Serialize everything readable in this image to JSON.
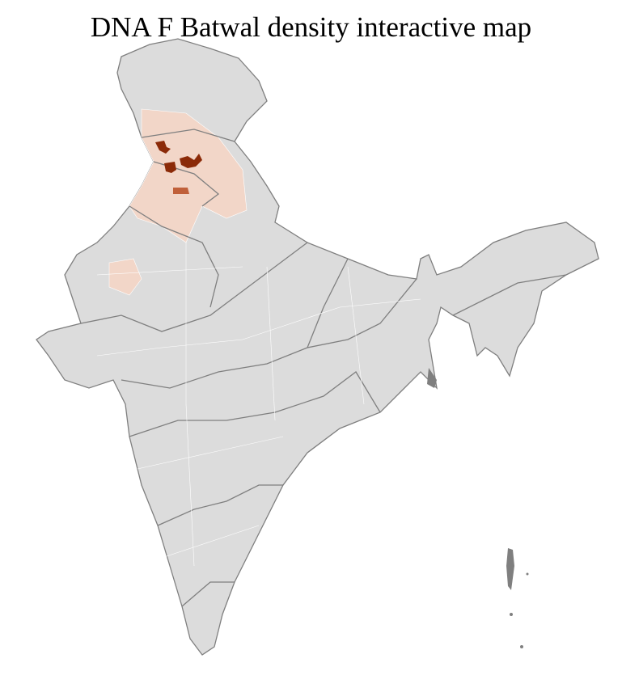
{
  "title": "DNA F Batwal density interactive map",
  "colors": {
    "no_data": "#dcdcdc",
    "border": "#7f7f7f",
    "district_line": "#ffffff",
    "low": "#f2d6c8",
    "medium": "#c0603a",
    "high": "#8b2a08"
  }
}
